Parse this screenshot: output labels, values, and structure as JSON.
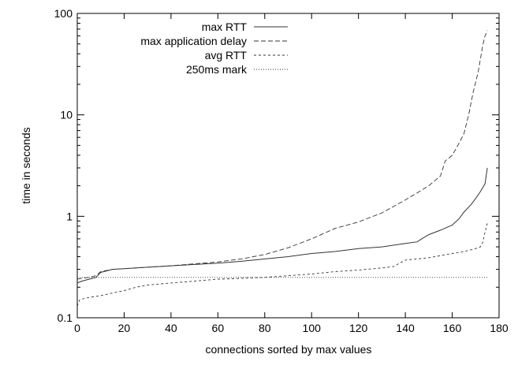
{
  "chart_data": {
    "type": "line",
    "title": "",
    "xlabel": "connections sorted by max values",
    "ylabel": "time in seconds",
    "xlim": [
      0,
      180
    ],
    "ylim": [
      0.1,
      100
    ],
    "yscale": "log",
    "grid": false,
    "legend_position": "top-left",
    "x_ticks": [
      0,
      20,
      40,
      60,
      80,
      100,
      120,
      140,
      160,
      180
    ],
    "y_ticks": [
      0.1,
      1,
      10,
      100
    ],
    "y_tick_labels": [
      "0.1",
      "1",
      "10",
      "100"
    ],
    "series": [
      {
        "name": "max RTT",
        "style": "solid",
        "x": [
          0,
          2,
          5,
          8,
          10,
          15,
          20,
          30,
          40,
          50,
          60,
          70,
          80,
          90,
          100,
          110,
          120,
          130,
          140,
          145,
          147,
          150,
          155,
          160,
          163,
          165,
          168,
          170,
          172,
          174,
          175
        ],
        "y": [
          0.22,
          0.23,
          0.24,
          0.25,
          0.28,
          0.3,
          0.305,
          0.315,
          0.325,
          0.335,
          0.345,
          0.36,
          0.38,
          0.4,
          0.43,
          0.45,
          0.48,
          0.5,
          0.54,
          0.56,
          0.6,
          0.66,
          0.73,
          0.82,
          0.95,
          1.1,
          1.3,
          1.5,
          1.75,
          2.1,
          3.0
        ]
      },
      {
        "name": "max application delay",
        "style": "dashed",
        "x": [
          0,
          2,
          5,
          8,
          10,
          15,
          20,
          30,
          40,
          50,
          60,
          70,
          80,
          90,
          100,
          110,
          120,
          130,
          140,
          142,
          145,
          150,
          155,
          157,
          160,
          162,
          165,
          167,
          169,
          171,
          172,
          173,
          174,
          175
        ],
        "y": [
          0.24,
          0.245,
          0.25,
          0.26,
          0.285,
          0.3,
          0.305,
          0.315,
          0.325,
          0.34,
          0.355,
          0.38,
          0.42,
          0.49,
          0.6,
          0.76,
          0.88,
          1.08,
          1.45,
          1.55,
          1.7,
          2.0,
          2.5,
          3.5,
          4.0,
          4.8,
          6.5,
          10.0,
          17.0,
          26.0,
          35.0,
          48.0,
          60.0,
          68.0
        ]
      },
      {
        "name": "avg RTT",
        "style": "short-dashed",
        "x": [
          0,
          1,
          3,
          6,
          10,
          15,
          20,
          25,
          30,
          40,
          50,
          60,
          70,
          80,
          90,
          100,
          110,
          120,
          130,
          135,
          138,
          140,
          145,
          150,
          155,
          160,
          165,
          170,
          172,
          173,
          174,
          175
        ],
        "y": [
          0.13,
          0.15,
          0.155,
          0.16,
          0.165,
          0.175,
          0.185,
          0.2,
          0.21,
          0.22,
          0.23,
          0.24,
          0.245,
          0.25,
          0.26,
          0.27,
          0.285,
          0.295,
          0.31,
          0.32,
          0.35,
          0.37,
          0.38,
          0.39,
          0.41,
          0.43,
          0.45,
          0.48,
          0.5,
          0.55,
          0.7,
          0.85
        ]
      },
      {
        "name": "250ms mark",
        "style": "dotted",
        "x": [
          0,
          175
        ],
        "y": [
          0.25,
          0.25
        ]
      }
    ]
  }
}
